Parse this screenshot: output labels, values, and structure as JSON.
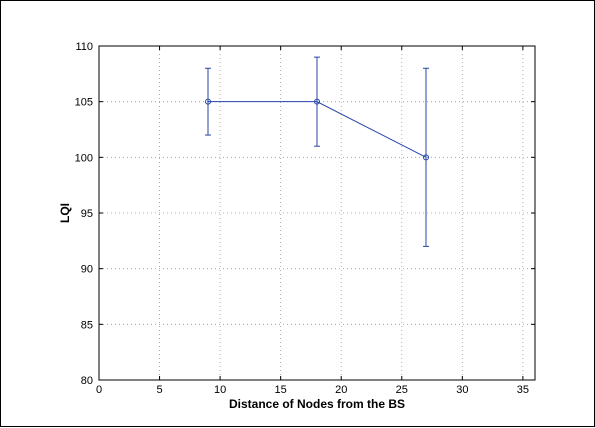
{
  "chart_data": {
    "type": "line",
    "title": "",
    "xlabel": "Distance of Nodes from the BS",
    "ylabel": "LQI",
    "xlim": [
      0,
      36
    ],
    "ylim": [
      80,
      110
    ],
    "xticks": [
      0,
      5,
      10,
      15,
      20,
      25,
      30,
      35
    ],
    "yticks": [
      80,
      85,
      90,
      95,
      100,
      105,
      110
    ],
    "grid": true,
    "legend": "none",
    "series": [
      {
        "color": "#2746a6",
        "marker": "circle",
        "x": [
          9,
          18,
          27
        ],
        "y": [
          105,
          105,
          100
        ],
        "err_low": [
          102,
          101,
          92
        ],
        "err_high": [
          108,
          109,
          108
        ]
      }
    ]
  }
}
